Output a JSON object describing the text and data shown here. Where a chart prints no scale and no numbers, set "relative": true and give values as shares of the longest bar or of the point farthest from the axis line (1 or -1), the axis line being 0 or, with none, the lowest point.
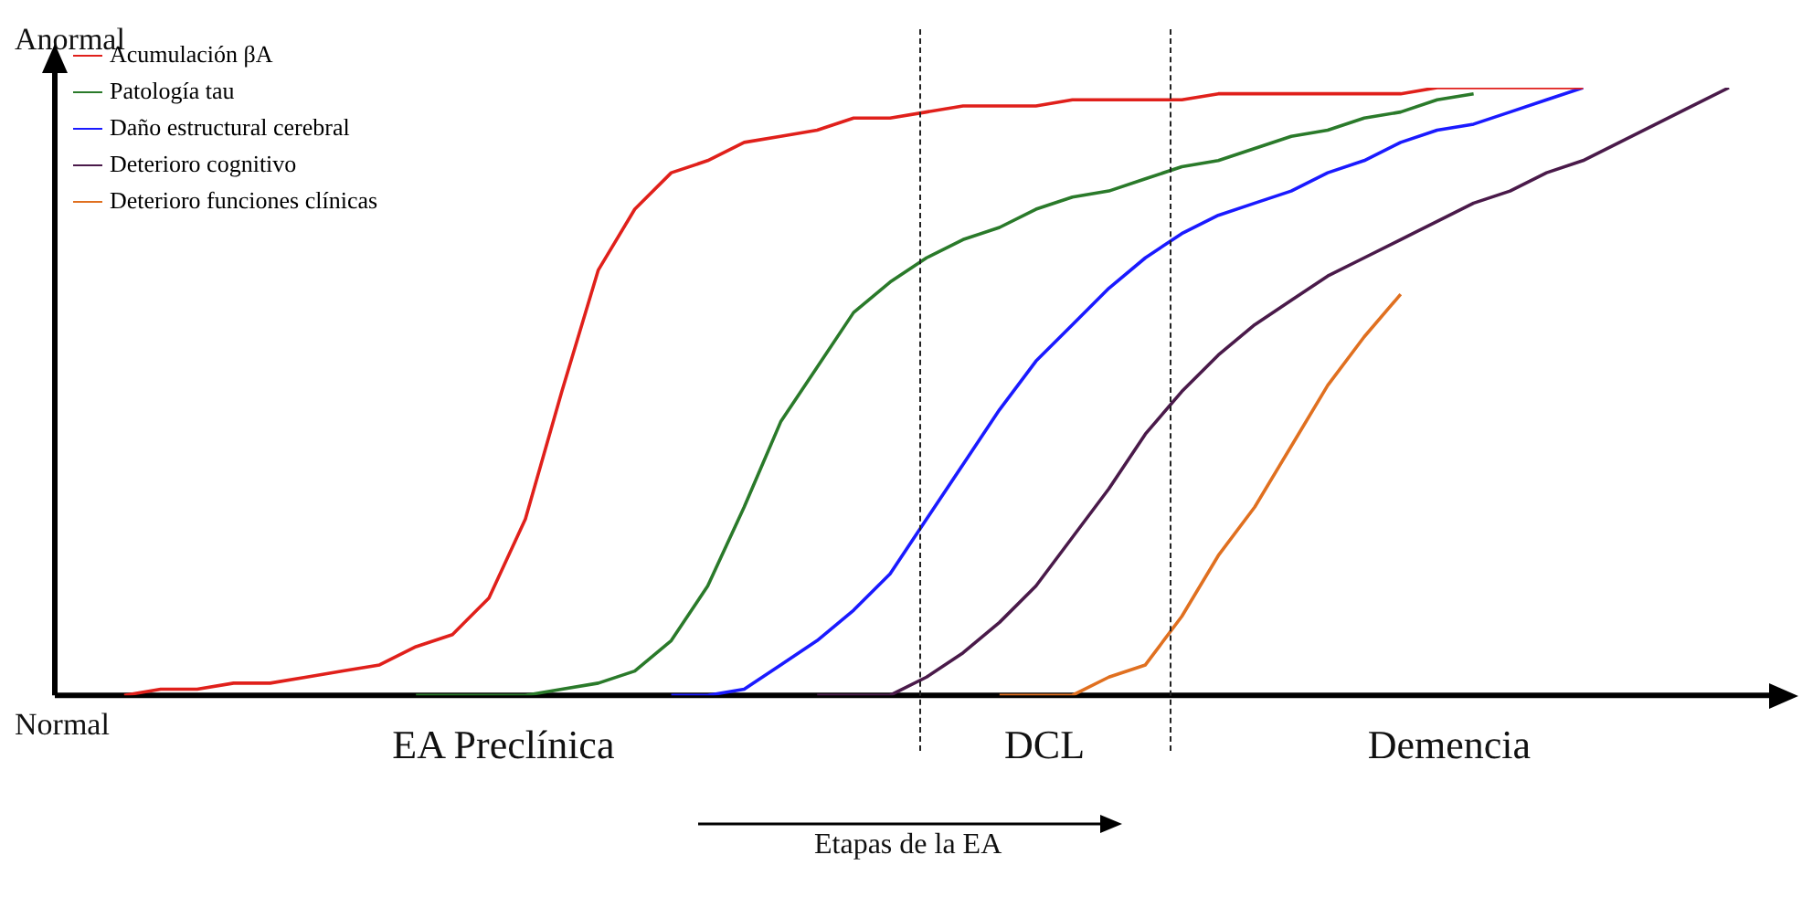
{
  "chart_data": {
    "type": "line",
    "relative": true,
    "xlabel": "Etapas de la EA",
    "legend": "top left",
    "marker": "none",
    "line_style": "solid",
    "categories": [
      null,
      null,
      null,
      null,
      null,
      null,
      null,
      null,
      null,
      null,
      null,
      null,
      null,
      null,
      null,
      null,
      null,
      null,
      null,
      null,
      null,
      null,
      null,
      null,
      null,
      null,
      null,
      null,
      null,
      null,
      null,
      null,
      null,
      null,
      null,
      null,
      null,
      null,
      null,
      null,
      null,
      null,
      null,
      null,
      null,
      null
    ],
    "annotations": [
      "Anormal",
      "Normal",
      "EA Preclínica",
      "DCL",
      "Demencia"
    ],
    "series": [
      {
        "name": "Acumulación βA",
        "color": "#e0201b",
        "values": [
          null,
          0,
          0.01,
          0.01,
          0.02,
          0.02,
          0.03,
          0.04,
          0.05,
          0.08,
          0.1,
          0.16,
          0.29,
          0.5,
          0.7,
          0.8,
          0.86,
          0.88,
          0.91,
          0.92,
          0.93,
          0.95,
          0.95,
          0.96,
          0.97,
          0.97,
          0.97,
          0.98,
          0.98,
          0.98,
          0.98,
          0.99,
          0.99,
          0.99,
          0.99,
          0.99,
          0.99,
          1,
          1,
          1,
          1,
          1,
          null,
          null,
          null,
          null
        ]
      },
      {
        "name": "Patología tau",
        "color": "#2a7a2a",
        "values": [
          null,
          null,
          null,
          null,
          null,
          null,
          null,
          null,
          null,
          0,
          0,
          0,
          0,
          0.01,
          0.02,
          0.04,
          0.09,
          0.18,
          0.31,
          0.45,
          0.54,
          0.63,
          0.68,
          0.72,
          0.75,
          0.77,
          0.8,
          0.82,
          0.83,
          0.85,
          0.87,
          0.88,
          0.9,
          0.92,
          0.93,
          0.95,
          0.96,
          0.98,
          0.99,
          null,
          null,
          null,
          null,
          null,
          null,
          null
        ]
      },
      {
        "name": "Daño estructural cerebral",
        "color": "#1a1aff",
        "values": [
          null,
          null,
          null,
          null,
          null,
          null,
          null,
          null,
          null,
          null,
          null,
          null,
          null,
          null,
          null,
          null,
          0,
          0,
          0.01,
          0.05,
          0.09,
          0.14,
          0.2,
          0.29,
          0.38,
          0.47,
          0.55,
          0.61,
          0.67,
          0.72,
          0.76,
          0.79,
          0.81,
          0.83,
          0.86,
          0.88,
          0.91,
          0.93,
          0.94,
          0.96,
          0.98,
          1,
          null,
          null,
          null,
          null
        ]
      },
      {
        "name": "Deterioro cognitivo",
        "color": "#4a1a4a",
        "values": [
          null,
          null,
          null,
          null,
          null,
          null,
          null,
          null,
          null,
          null,
          null,
          null,
          null,
          null,
          null,
          null,
          null,
          null,
          null,
          null,
          0,
          0,
          0,
          0.03,
          0.07,
          0.12,
          0.18,
          0.26,
          0.34,
          0.43,
          0.5,
          0.56,
          0.61,
          0.65,
          0.69,
          0.72,
          0.75,
          0.78,
          0.81,
          0.83,
          0.86,
          0.88,
          0.91,
          0.94,
          0.97,
          1
        ]
      },
      {
        "name": "Deterioro funciones clínicas",
        "color": "#e07020",
        "values": [
          null,
          null,
          null,
          null,
          null,
          null,
          null,
          null,
          null,
          null,
          null,
          null,
          null,
          null,
          null,
          null,
          null,
          null,
          null,
          null,
          null,
          null,
          null,
          null,
          null,
          0,
          0,
          0,
          0.03,
          0.05,
          0.13,
          0.23,
          0.31,
          0.41,
          0.51,
          0.59,
          0.66,
          null,
          null,
          null,
          null,
          null,
          null,
          null,
          null,
          null
        ]
      }
    ]
  }
}
